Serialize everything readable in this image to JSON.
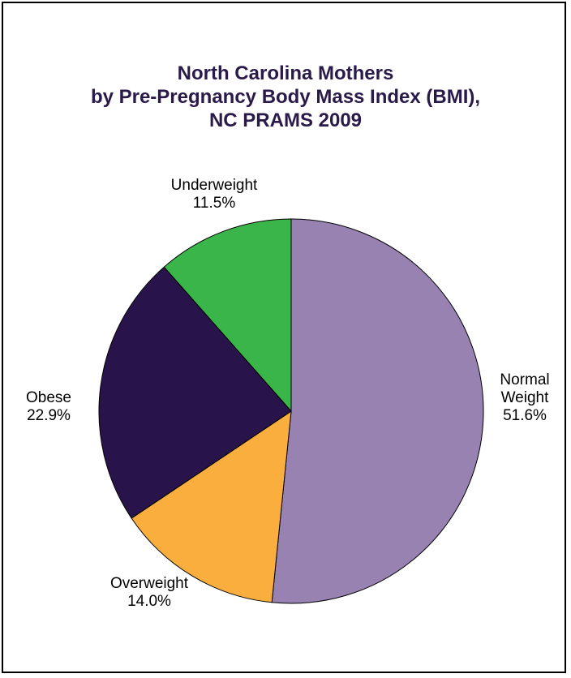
{
  "chart_data": {
    "type": "pie",
    "title_lines": [
      "North Carolina Mothers",
      "by Pre-Pregnancy Body Mass Index (BMI),",
      "NC PRAMS 2009"
    ],
    "slices": [
      {
        "label_lines": [
          "Normal",
          "Weight"
        ],
        "value_label": "51.6%",
        "value": 51.6,
        "color": "#9782b1"
      },
      {
        "label_lines": [
          "Overweight"
        ],
        "value_label": "14.0%",
        "value": 14.0,
        "color": "#f9ae3d"
      },
      {
        "label_lines": [
          "Obese"
        ],
        "value_label": "22.9%",
        "value": 22.9,
        "color": "#28134a"
      },
      {
        "label_lines": [
          "Underweight"
        ],
        "value_label": "11.5%",
        "value": 11.5,
        "color": "#3ab54a"
      }
    ],
    "start_angle": "12 o'clock",
    "direction": "clockwise",
    "edge_color": "#000000",
    "title_color": "#2a1a4a"
  }
}
